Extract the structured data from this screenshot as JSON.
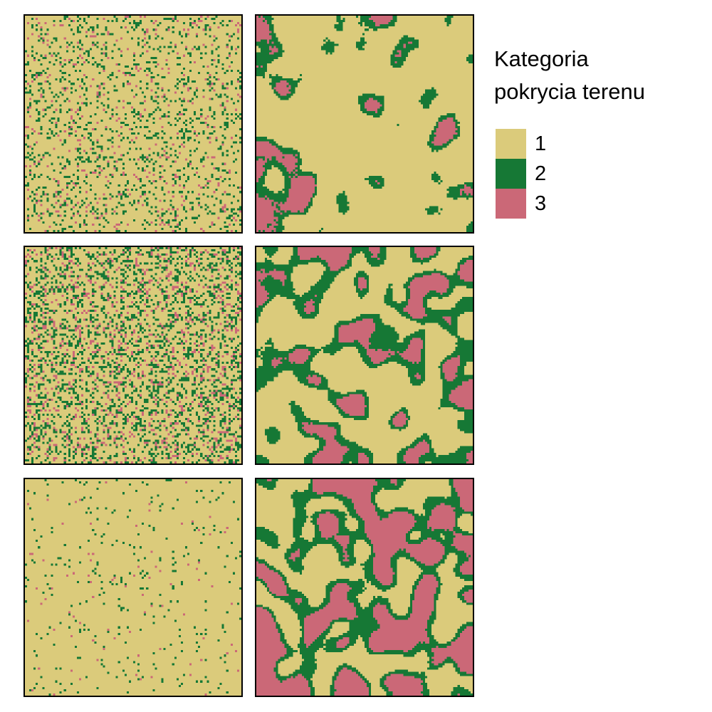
{
  "chart_data": {
    "type": "heatmap",
    "legend": {
      "title_line1": "Kategoria",
      "title_line2": "pokrycia terenu",
      "placement": "right",
      "entries": [
        {
          "label": "1",
          "color": "#DBCB7B"
        },
        {
          "label": "2",
          "color": "#167835"
        },
        {
          "label": "3",
          "color": "#CB6877"
        }
      ]
    },
    "grid_size": 100,
    "categories": [
      1,
      2,
      3
    ],
    "panels": [
      {
        "row": 1,
        "col": 1,
        "share": [
          0.82,
          0.13,
          0.05
        ],
        "pattern": "random"
      },
      {
        "row": 1,
        "col": 2,
        "share": [
          0.8,
          0.12,
          0.08
        ],
        "pattern": "clustered"
      },
      {
        "row": 2,
        "col": 1,
        "share": [
          0.68,
          0.22,
          0.1
        ],
        "pattern": "random"
      },
      {
        "row": 2,
        "col": 2,
        "share": [
          0.55,
          0.28,
          0.17
        ],
        "pattern": "clustered"
      },
      {
        "row": 3,
        "col": 1,
        "share": [
          0.96,
          0.03,
          0.01
        ],
        "pattern": "random"
      },
      {
        "row": 3,
        "col": 2,
        "share": [
          0.38,
          0.27,
          0.35
        ],
        "pattern": "clustered"
      }
    ]
  }
}
